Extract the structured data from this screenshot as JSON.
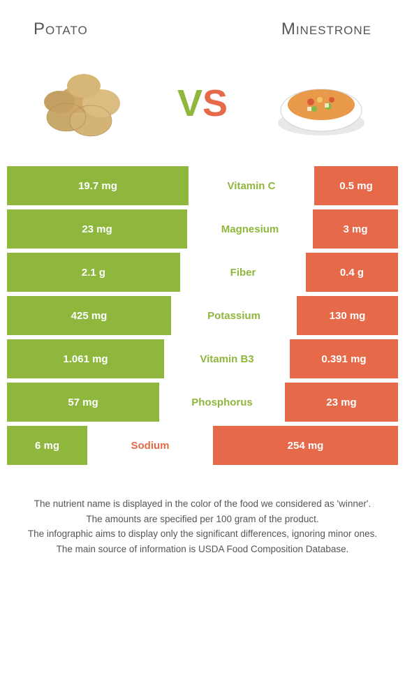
{
  "left": {
    "name": "Potato",
    "color": "#8fb73e"
  },
  "right": {
    "name": "Minestrone",
    "color": "#e6694a"
  },
  "vs": {
    "v": "V",
    "s": "S"
  },
  "bar_total_width": 560,
  "mid_width": 180,
  "rows": [
    {
      "nutrient": "Vitamin C",
      "left": "19.7 mg",
      "right": "0.5 mg",
      "winner": "left",
      "left_w": 260,
      "right_w": 120
    },
    {
      "nutrient": "Magnesium",
      "left": "23 mg",
      "right": "3 mg",
      "winner": "left",
      "left_w": 258,
      "right_w": 122
    },
    {
      "nutrient": "Fiber",
      "left": "2.1 g",
      "right": "0.4 g",
      "winner": "left",
      "left_w": 248,
      "right_w": 132
    },
    {
      "nutrient": "Potassium",
      "left": "425 mg",
      "right": "130 mg",
      "winner": "left",
      "left_w": 235,
      "right_w": 145
    },
    {
      "nutrient": "Vitamin B3",
      "left": "1.061 mg",
      "right": "0.391 mg",
      "winner": "left",
      "left_w": 225,
      "right_w": 155
    },
    {
      "nutrient": "Phosphorus",
      "left": "57 mg",
      "right": "23 mg",
      "winner": "left",
      "left_w": 218,
      "right_w": 162
    },
    {
      "nutrient": "Sodium",
      "left": "6 mg",
      "right": "254 mg",
      "winner": "right",
      "left_w": 115,
      "right_w": 265
    }
  ],
  "footer": [
    "The nutrient name is displayed in the color of the food we considered as 'winner'.",
    "The amounts are specified per 100 gram of the product.",
    "The infographic aims to display only the significant differences, ignoring minor ones.",
    "The main source of information is USDA Food Composition Database."
  ]
}
